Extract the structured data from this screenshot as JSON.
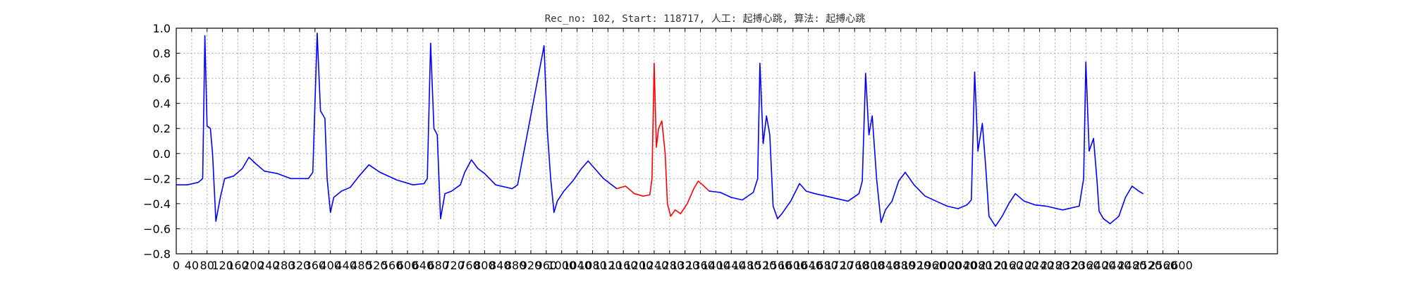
{
  "chart_data": {
    "type": "line",
    "title": "Rec_no: 102, Start: 118717, 人工: 起搏心跳, 算法: 起搏心跳",
    "xlabel": "",
    "ylabel": "",
    "xlim": [
      0,
      1000
    ],
    "ylim": [
      -0.8,
      1.0
    ],
    "grid": true,
    "yticks": [
      1.0,
      0.8,
      0.6,
      0.4,
      0.2,
      0.0,
      -0.2,
      -0.4,
      -0.6,
      -0.8
    ],
    "ytick_labels": [
      "1.0",
      "0.8",
      "0.6",
      "0.4",
      "0.2",
      "0.0",
      "−0.2",
      "−0.4",
      "−0.6",
      "−0.8"
    ],
    "xtick_labels": [
      "0",
      "40",
      "80",
      "120",
      "160",
      "200",
      "240",
      "280",
      "320",
      "360",
      "400",
      "440",
      "480",
      "520",
      "560",
      "600",
      "640",
      "680",
      "720",
      "760",
      "800",
      "840",
      "880",
      "920",
      "960",
      "1000",
      "1040",
      "1080",
      "1120",
      "1160",
      "1200",
      "1240",
      "1280",
      "1320",
      "1360",
      "1400",
      "1440",
      "1480",
      "1520",
      "1560",
      "1600",
      "1640",
      "1680",
      "1720",
      "1760",
      "1800",
      "1840",
      "1880",
      "1920",
      "1960",
      "2000",
      "2040",
      "2080",
      "2120",
      "2160",
      "2200",
      "2240",
      "2280",
      "2320",
      "2360",
      "2400",
      "2440",
      "2480",
      "2520",
      "2560",
      "2600"
    ],
    "xtick_positions": [
      0,
      14,
      28,
      42,
      56,
      70,
      84,
      98,
      112,
      126,
      140,
      154,
      168,
      182,
      196,
      210,
      224,
      238,
      252,
      266,
      280,
      294,
      308,
      322,
      336,
      350,
      364,
      378,
      392,
      406,
      420,
      434,
      448,
      462,
      476,
      490,
      504,
      518,
      532,
      546,
      560,
      574,
      588,
      602,
      616,
      630,
      644,
      658,
      672,
      686,
      700,
      714,
      728,
      742,
      756,
      770,
      784,
      798,
      812,
      826,
      840,
      854,
      868,
      882,
      896,
      910
    ],
    "series": [
      {
        "color": "#0000ff",
        "points": [
          [
            0,
            -0.25
          ],
          [
            10,
            -0.25
          ],
          [
            20,
            -0.23
          ],
          [
            24,
            -0.2
          ],
          [
            26,
            0.94
          ],
          [
            28,
            0.22
          ],
          [
            31,
            0.2
          ],
          [
            33,
            0.0
          ],
          [
            36,
            -0.54
          ],
          [
            40,
            -0.35
          ],
          [
            44,
            -0.2
          ],
          [
            52,
            -0.18
          ],
          [
            60,
            -0.12
          ],
          [
            66,
            -0.03
          ],
          [
            72,
            -0.08
          ],
          [
            80,
            -0.14
          ],
          [
            92,
            -0.16
          ],
          [
            104,
            -0.2
          ],
          [
            120,
            -0.2
          ],
          [
            124,
            -0.15
          ],
          [
            128,
            0.96
          ],
          [
            131,
            0.34
          ],
          [
            135,
            0.28
          ],
          [
            137,
            -0.2
          ],
          [
            140,
            -0.47
          ],
          [
            143,
            -0.35
          ],
          [
            150,
            -0.3
          ],
          [
            158,
            -0.27
          ],
          [
            166,
            -0.18
          ],
          [
            175,
            -0.09
          ],
          [
            185,
            -0.15
          ],
          [
            200,
            -0.21
          ],
          [
            215,
            -0.25
          ],
          [
            225,
            -0.24
          ],
          [
            228,
            -0.2
          ],
          [
            231,
            0.88
          ],
          [
            234,
            0.2
          ],
          [
            237,
            0.15
          ],
          [
            240,
            -0.52
          ],
          [
            244,
            -0.32
          ],
          [
            250,
            -0.3
          ],
          [
            258,
            -0.25
          ],
          [
            262,
            -0.15
          ],
          [
            268,
            -0.05
          ],
          [
            274,
            -0.12
          ],
          [
            280,
            -0.16
          ],
          [
            290,
            -0.25
          ],
          [
            305,
            -0.28
          ],
          [
            310,
            -0.25
          ],
          [
            334,
            0.86
          ],
          [
            337,
            0.18
          ],
          [
            340,
            -0.2
          ],
          [
            343,
            -0.47
          ],
          [
            346,
            -0.38
          ],
          [
            352,
            -0.3
          ],
          [
            360,
            -0.22
          ],
          [
            368,
            -0.12
          ],
          [
            374,
            -0.06
          ],
          [
            380,
            -0.12
          ],
          [
            388,
            -0.2
          ],
          [
            400,
            -0.28
          ]
        ]
      },
      {
        "color": "#ff0000",
        "points": [
          [
            400,
            -0.28
          ],
          [
            408,
            -0.26
          ],
          [
            416,
            -0.32
          ],
          [
            424,
            -0.34
          ],
          [
            430,
            -0.33
          ],
          [
            432,
            -0.2
          ],
          [
            434,
            0.72
          ],
          [
            436,
            0.05
          ],
          [
            438,
            0.2
          ],
          [
            441,
            0.26
          ],
          [
            444,
            0.0
          ],
          [
            446,
            -0.4
          ],
          [
            449,
            -0.5
          ],
          [
            453,
            -0.45
          ],
          [
            458,
            -0.48
          ],
          [
            464,
            -0.4
          ],
          [
            470,
            -0.28
          ],
          [
            474,
            -0.22
          ],
          [
            478,
            -0.25
          ],
          [
            484,
            -0.3
          ]
        ]
      },
      {
        "color": "#0000ff",
        "points": [
          [
            484,
            -0.3
          ],
          [
            494,
            -0.31
          ],
          [
            504,
            -0.35
          ],
          [
            514,
            -0.37
          ],
          [
            524,
            -0.31
          ],
          [
            528,
            -0.2
          ],
          [
            530,
            0.72
          ],
          [
            533,
            0.08
          ],
          [
            536,
            0.3
          ],
          [
            539,
            0.15
          ],
          [
            542,
            -0.42
          ],
          [
            546,
            -0.52
          ],
          [
            550,
            -0.48
          ],
          [
            558,
            -0.38
          ],
          [
            566,
            -0.24
          ],
          [
            572,
            -0.3
          ],
          [
            580,
            -0.32
          ],
          [
            590,
            -0.34
          ],
          [
            600,
            -0.36
          ],
          [
            610,
            -0.38
          ],
          [
            620,
            -0.32
          ],
          [
            623,
            -0.22
          ],
          [
            626,
            0.64
          ],
          [
            629,
            0.15
          ],
          [
            632,
            0.3
          ],
          [
            636,
            -0.2
          ],
          [
            640,
            -0.55
          ],
          [
            644,
            -0.45
          ],
          [
            650,
            -0.38
          ],
          [
            656,
            -0.22
          ],
          [
            662,
            -0.15
          ],
          [
            670,
            -0.25
          ],
          [
            680,
            -0.34
          ],
          [
            690,
            -0.38
          ],
          [
            700,
            -0.42
          ],
          [
            710,
            -0.44
          ],
          [
            718,
            -0.41
          ],
          [
            722,
            -0.37
          ],
          [
            725,
            0.65
          ],
          [
            728,
            0.02
          ],
          [
            732,
            0.24
          ],
          [
            735,
            -0.1
          ],
          [
            738,
            -0.5
          ],
          [
            744,
            -0.58
          ],
          [
            750,
            -0.5
          ],
          [
            756,
            -0.4
          ],
          [
            762,
            -0.32
          ],
          [
            770,
            -0.38
          ],
          [
            780,
            -0.41
          ],
          [
            790,
            -0.42
          ],
          [
            805,
            -0.45
          ],
          [
            820,
            -0.42
          ],
          [
            824,
            -0.2
          ],
          [
            826,
            0.73
          ],
          [
            829,
            0.02
          ],
          [
            833,
            0.12
          ],
          [
            836,
            -0.2
          ],
          [
            838,
            -0.46
          ],
          [
            842,
            -0.52
          ],
          [
            848,
            -0.56
          ],
          [
            856,
            -0.5
          ],
          [
            862,
            -0.35
          ],
          [
            868,
            -0.26
          ],
          [
            874,
            -0.3
          ],
          [
            878,
            -0.32
          ]
        ]
      }
    ]
  }
}
